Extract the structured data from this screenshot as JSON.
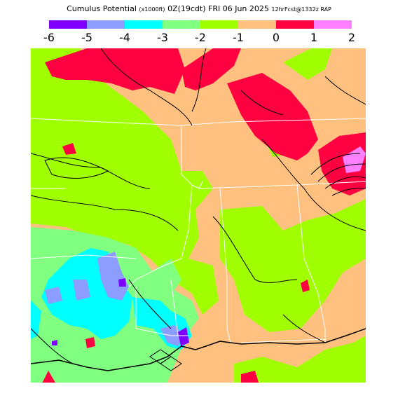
{
  "header": {
    "parts": [
      "Cumulus Potential",
      "(x1000ft)",
      "0Z(19cdt) FRI 06 Jun 2025",
      "12hrFcst@1332z RAP"
    ]
  },
  "legend": {
    "ticks": [
      "-6",
      "-5",
      "-4",
      "-3",
      "-2",
      "-1",
      "0",
      "1",
      "2"
    ],
    "colors": [
      "#8000ff",
      "#8c9cff",
      "#00ffff",
      "#80ff80",
      "#a0ff00",
      "#ffc080",
      "#ff0040",
      "#ff80ff"
    ]
  },
  "map": {
    "background_color": "#ffc080",
    "region_colors": {
      "green": "#a0ff00",
      "red": "#ff0040",
      "light_green": "#80ff80",
      "cyan": "#00ffff",
      "blue": "#8c9cff",
      "purple": "#8000ff",
      "pink": "#ff80ff"
    }
  }
}
